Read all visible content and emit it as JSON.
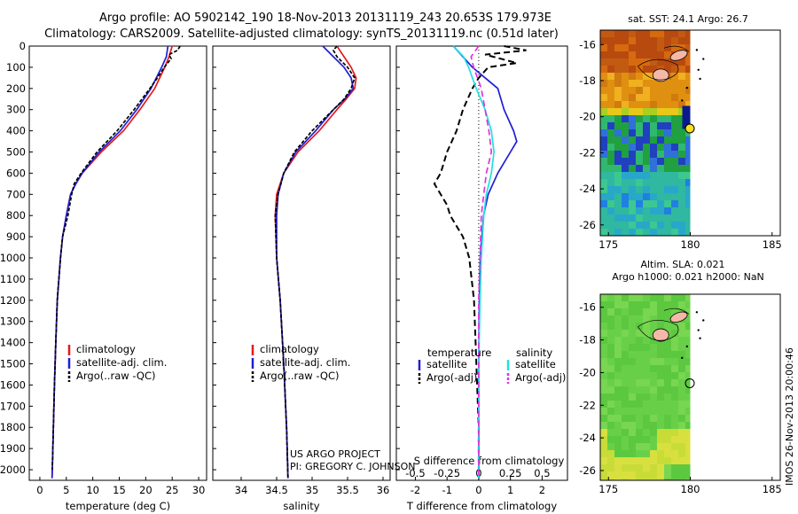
{
  "header": {
    "title_line1": "Argo profile: AO 5902142_190 18-Nov-2013 20131119_243 20.653S 179.973E",
    "title_line2": "Climatology: CARS2009. Satellite-adjusted climatology: synTS_20131119.nc (0.51d later)"
  },
  "credits": {
    "project": "US ARGO PROJECT",
    "pi": "PI: GREGORY C. JOHNSON",
    "timestamp": "IMOS 26-Nov-2013 20:00:46"
  },
  "colors": {
    "climatology": "#e41a1c",
    "satellite": "#1f1fd6",
    "argo": "#000000",
    "satellite_salinity": "#22e0e0",
    "argo_salinity": "#e033e0",
    "land": "#f4b8a8"
  },
  "depth_axis": {
    "ylim": [
      0,
      2050
    ],
    "ticks": [
      0,
      100,
      200,
      300,
      400,
      500,
      600,
      700,
      800,
      900,
      1000,
      1100,
      1200,
      1300,
      1400,
      1500,
      1600,
      1700,
      1800,
      1900,
      2000
    ],
    "inverted": true
  },
  "chart_data": [
    {
      "type": "line",
      "panel": "temperature",
      "xlabel": "temperature (deg C)",
      "ylabel": "",
      "xlim": [
        -2,
        31.5
      ],
      "xticks": [
        0,
        5,
        10,
        15,
        20,
        25,
        30
      ],
      "legend": {
        "placement": "lower-middle",
        "entries": [
          "climatology",
          "satellite-adj. clim.",
          "Argo(..raw -QC)"
        ]
      },
      "series": [
        {
          "name": "climatology",
          "depth": [
            0,
            50,
            100,
            200,
            300,
            400,
            500,
            600,
            650,
            700,
            800,
            900,
            1000,
            1200,
            1400,
            1600,
            1800,
            2000,
            2040
          ],
          "values": [
            25.0,
            24.4,
            23.6,
            21.7,
            18.9,
            15.8,
            11.6,
            8.0,
            6.8,
            5.8,
            5.0,
            4.3,
            3.9,
            3.3,
            3.0,
            2.75,
            2.55,
            2.35,
            2.3
          ]
        },
        {
          "name": "satellite-adj. clim.",
          "depth": [
            0,
            50,
            100,
            200,
            300,
            400,
            500,
            600,
            650,
            700,
            800,
            900,
            1000,
            1200,
            1400,
            1600,
            1800,
            2000,
            2040
          ],
          "values": [
            24.2,
            23.9,
            23.0,
            21.0,
            18.3,
            15.2,
            11.2,
            8.0,
            6.8,
            5.8,
            5.0,
            4.3,
            3.9,
            3.3,
            3.0,
            2.75,
            2.55,
            2.35,
            2.3
          ]
        },
        {
          "name": "Argo(..raw -QC)",
          "depth": [
            0,
            20,
            40,
            60,
            100,
            150,
            200,
            300,
            400,
            500,
            600,
            650,
            700,
            800,
            900,
            1000,
            1200,
            1400,
            1600,
            1800,
            2000
          ],
          "values": [
            26.5,
            26.0,
            24.4,
            24.8,
            23.5,
            22.2,
            20.8,
            17.8,
            14.6,
            10.8,
            7.8,
            6.5,
            6.0,
            5.3,
            4.3,
            3.9,
            3.3,
            3.0,
            2.75,
            2.55,
            2.35
          ]
        }
      ]
    },
    {
      "type": "line",
      "panel": "salinity",
      "xlabel": "salinity",
      "ylabel": "",
      "xlim": [
        33.6,
        36.1
      ],
      "xticks": [
        34,
        34.5,
        35,
        35.5,
        36
      ],
      "legend": {
        "placement": "lower-middle",
        "entries": [
          "climatology",
          "satellite-adj. clim.",
          "Argo(..raw -QC)"
        ]
      },
      "series": [
        {
          "name": "climatology",
          "depth": [
            0,
            50,
            100,
            150,
            200,
            250,
            300,
            400,
            500,
            600,
            700,
            800,
            1000,
            1200,
            1500,
            1800,
            2040
          ],
          "values": [
            35.35,
            35.45,
            35.55,
            35.62,
            35.6,
            35.48,
            35.35,
            35.1,
            34.8,
            34.6,
            34.5,
            34.48,
            34.5,
            34.55,
            34.6,
            34.64,
            34.66
          ]
        },
        {
          "name": "satellite-adj. clim.",
          "depth": [
            0,
            50,
            100,
            150,
            200,
            250,
            300,
            400,
            500,
            600,
            700,
            800,
            1000,
            1200,
            1500,
            1800,
            2040
          ],
          "values": [
            35.15,
            35.3,
            35.45,
            35.55,
            35.58,
            35.46,
            35.3,
            35.05,
            34.77,
            34.6,
            34.52,
            34.5,
            34.5,
            34.55,
            34.6,
            34.64,
            34.66
          ]
        },
        {
          "name": "Argo(..raw -QC)",
          "depth": [
            0,
            20,
            50,
            100,
            150,
            200,
            250,
            300,
            400,
            500,
            600,
            700,
            800,
            1000,
            1200,
            1500,
            1800,
            2040
          ],
          "values": [
            35.35,
            35.3,
            35.35,
            35.5,
            35.6,
            35.55,
            35.45,
            35.3,
            35.0,
            34.75,
            34.6,
            34.52,
            34.48,
            34.5,
            34.55,
            34.6,
            34.64,
            34.66
          ]
        }
      ]
    },
    {
      "type": "line",
      "panel": "difference",
      "xlabel": "T difference from climatology",
      "xlabel_top": "S difference from climatology",
      "xlim": [
        -2.6,
        2.8
      ],
      "xticks": [
        -2,
        -1,
        0,
        1,
        2
      ],
      "s_xticks": [
        -0.5,
        -0.25,
        0,
        0.25,
        0.5
      ],
      "s_ticklabels": [
        "-0.5",
        "-0.25",
        "0",
        "0.25",
        "0.5"
      ],
      "legend": {
        "placement": "lower-middle",
        "headers": [
          "temperature",
          "salinity"
        ],
        "entries": [
          "satellite",
          "Argo(-adj)",
          "satellite",
          "Argo(-adj)"
        ]
      },
      "series": [
        {
          "name": "temperature satellite",
          "depth": [
            0,
            100,
            200,
            300,
            400,
            450,
            500,
            600,
            700,
            800,
            1000,
            1200,
            1500,
            1800,
            2040
          ],
          "values": [
            -0.8,
            -0.2,
            0.6,
            0.8,
            1.1,
            1.2,
            1.0,
            0.6,
            0.3,
            0.15,
            0.05,
            0.02,
            0.0,
            0.0,
            0.0
          ]
        },
        {
          "name": "temperature Argo(-adj)",
          "depth": [
            0,
            20,
            40,
            60,
            80,
            100,
            150,
            200,
            300,
            400,
            500,
            600,
            650,
            700,
            750,
            800,
            900,
            1000,
            1200,
            1400,
            1600,
            1800,
            2040
          ],
          "values": [
            0.8,
            1.5,
            0.2,
            0.7,
            1.2,
            0.3,
            0.0,
            -0.2,
            -0.5,
            -0.7,
            -1.0,
            -1.2,
            -1.4,
            -1.2,
            -1.0,
            -0.9,
            -0.5,
            -0.3,
            -0.15,
            -0.1,
            -0.05,
            0.0,
            0.0
          ]
        },
        {
          "name": "salinity satellite",
          "depth": [
            0,
            50,
            100,
            200,
            300,
            400,
            500,
            600,
            700,
            800,
            1000,
            1200,
            1500,
            1800,
            2040
          ],
          "values": [
            -0.2,
            -0.12,
            -0.08,
            -0.02,
            0.05,
            0.1,
            0.12,
            0.1,
            0.06,
            0.04,
            0.02,
            0.01,
            0.0,
            0.0,
            0.0
          ]
        },
        {
          "name": "salinity Argo(-adj)",
          "depth": [
            0,
            50,
            100,
            200,
            300,
            400,
            500,
            600,
            700,
            800,
            1000,
            1200,
            1500,
            1800,
            2040
          ],
          "values": [
            0.0,
            -0.06,
            -0.04,
            0.02,
            0.05,
            0.08,
            0.1,
            0.06,
            0.04,
            0.02,
            0.01,
            0.0,
            0.0,
            0.0,
            0.0
          ]
        }
      ]
    },
    {
      "type": "heatmap",
      "panel": "sst_map",
      "title": "sat. SST: 24.1  Argo: 26.7",
      "xlim": [
        174.5,
        185.5
      ],
      "ylim": [
        -26.6,
        -15.2
      ],
      "xticks": [
        175,
        180,
        185
      ],
      "yticks": [
        -16,
        -18,
        -20,
        -22,
        -24,
        -26
      ],
      "data_extent_lon": [
        174.5,
        180
      ],
      "argo_position": {
        "lon": 179.973,
        "lat": -20.653
      }
    },
    {
      "type": "heatmap",
      "panel": "sla_map",
      "title_line1": "Altim. SLA: 0.021",
      "title_line2": "Argo h1000: 0.021 h2000: NaN",
      "xlim": [
        174.5,
        185.5
      ],
      "ylim": [
        -26.6,
        -15.2
      ],
      "xticks": [
        175,
        180,
        185
      ],
      "yticks": [
        -16,
        -18,
        -20,
        -22,
        -24,
        -26
      ],
      "data_extent_lon": [
        174.5,
        180
      ],
      "argo_position": {
        "lon": 179.973,
        "lat": -20.653
      }
    }
  ]
}
